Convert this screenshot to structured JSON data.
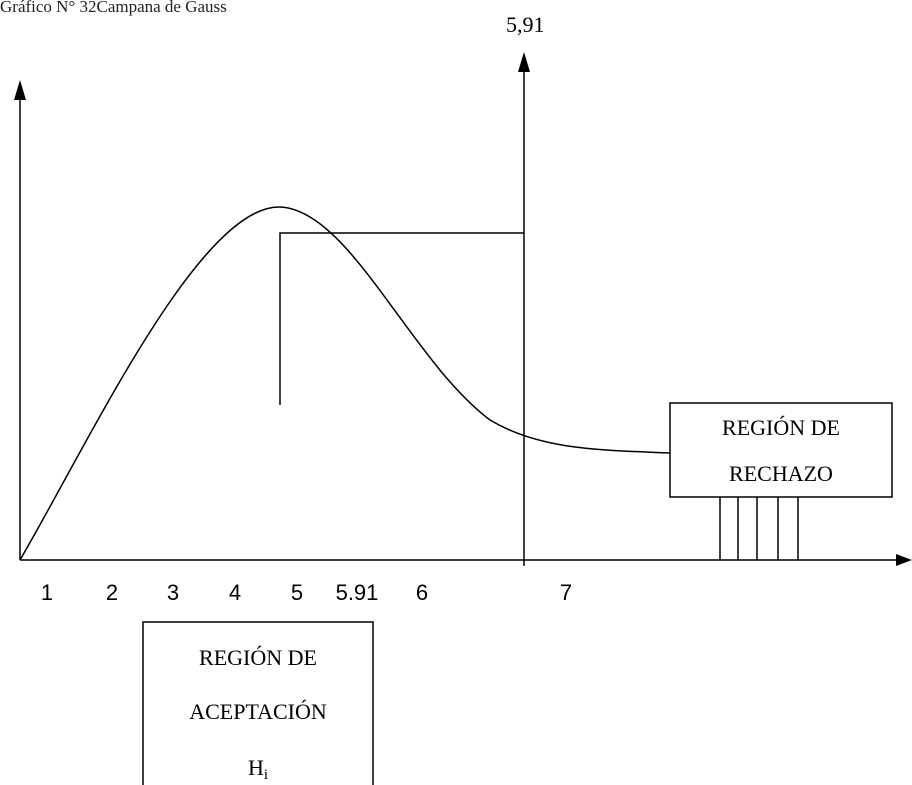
{
  "title": "Gráfico N° 32Campana de Gauss",
  "top_label": "5,91",
  "x_labels": [
    "1",
    "2",
    "3",
    "4",
    "5",
    "5.91",
    "6",
    "7"
  ],
  "rejection_box": {
    "lines": [
      "REGIÓN DE",
      "RECHAZO"
    ]
  },
  "acceptance_box": {
    "lines": [
      "REGIÓN DE",
      "ACEPTACIÓN"
    ],
    "symbol": "H",
    "subscript": "i"
  }
}
